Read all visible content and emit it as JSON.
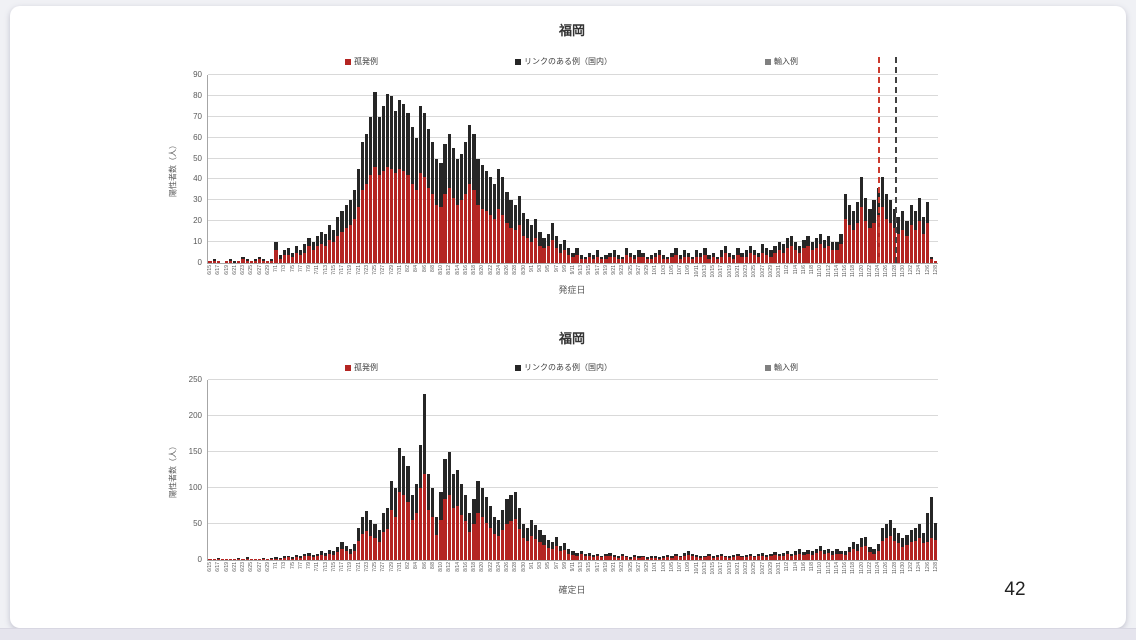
{
  "slide": {
    "page_number": "42"
  },
  "colors": {
    "isolated_red": "#b42522",
    "linked_black": "#262626",
    "imported_gray": "#808080",
    "vline_red": "#cc3b2e",
    "vline_black": "#404040",
    "gridline": "#d9d9d9",
    "axis_line": "#a6a6a6",
    "tick_text": "#595959"
  },
  "x_tick_labels": [
    "6/15",
    "6/17",
    "6/19",
    "6/21",
    "6/23",
    "6/25",
    "6/27",
    "6/29",
    "7/1",
    "7/3",
    "7/5",
    "7/7",
    "7/9",
    "7/11",
    "7/13",
    "7/15",
    "7/17",
    "7/19",
    "7/21",
    "7/23",
    "7/25",
    "7/27",
    "7/29",
    "7/31",
    "8/2",
    "8/4",
    "8/6",
    "8/8",
    "8/10",
    "8/12",
    "8/14",
    "8/16",
    "8/18",
    "8/20",
    "8/22",
    "8/24",
    "8/26",
    "8/28",
    "8/30",
    "9/1",
    "9/3",
    "9/5",
    "9/7",
    "9/9",
    "9/11",
    "9/13",
    "9/15",
    "9/17",
    "9/19",
    "9/21",
    "9/23",
    "9/25",
    "9/27",
    "9/29",
    "10/1",
    "10/3",
    "10/5",
    "10/7",
    "10/9",
    "10/11",
    "10/13",
    "10/15",
    "10/17",
    "10/19",
    "10/21",
    "10/23",
    "10/25",
    "10/27",
    "10/29",
    "10/31",
    "11/2",
    "11/4",
    "11/6",
    "11/8",
    "11/10",
    "11/12",
    "11/14",
    "11/16",
    "11/18",
    "11/20",
    "11/22",
    "11/24",
    "11/26",
    "11/28",
    "11/30",
    "12/2",
    "12/4",
    "12/6",
    "12/8"
  ],
  "chart_data": [
    {
      "type": "bar",
      "stacked": true,
      "title": "福岡",
      "y_axis_label": "陽性者数（人）",
      "x_axis_title": "発症日",
      "y_max": 90,
      "ylim": [
        0,
        90
      ],
      "y_ticks": [
        0,
        10,
        20,
        30,
        40,
        50,
        60,
        70,
        80,
        90
      ],
      "x_range": {
        "start": "6/15",
        "end": "12/8",
        "n_bars": 177,
        "tick_every": 2
      },
      "legend": [
        {
          "label": "孤発例",
          "color": "#b42522"
        },
        {
          "label": "リンクのある例（国内）",
          "color": "#262626"
        },
        {
          "label": "輸入例",
          "color": "#808080"
        }
      ],
      "annotations": [
        {
          "type": "vline",
          "date": "11/24",
          "bar_index": 162,
          "color": "#cc3b2e"
        },
        {
          "type": "vline",
          "date": "11/28",
          "bar_index": 166,
          "color": "#404040"
        }
      ],
      "series": [
        {
          "name": "孤発例",
          "values": [
            1,
            1,
            1,
            0,
            1,
            1,
            0,
            1,
            2,
            1,
            1,
            1,
            2,
            1,
            1,
            1,
            6,
            2,
            4,
            4,
            3,
            5,
            4,
            5,
            8,
            6,
            8,
            9,
            8,
            11,
            10,
            13,
            15,
            17,
            18,
            21,
            27,
            35,
            38,
            42,
            46,
            42,
            44,
            46,
            45,
            43,
            45,
            44,
            42,
            38,
            35,
            43,
            41,
            36,
            33,
            28,
            27,
            33,
            36,
            31,
            28,
            30,
            33,
            38,
            35,
            28,
            26,
            25,
            23,
            21,
            26,
            23,
            19,
            17,
            16,
            18,
            13,
            12,
            10,
            12,
            8,
            7,
            8,
            11,
            7,
            5,
            6,
            4,
            3,
            4,
            2,
            2,
            3,
            2,
            3,
            2,
            2,
            3,
            3,
            2,
            2,
            4,
            3,
            2,
            3,
            3,
            2,
            2,
            3,
            4,
            2,
            2,
            3,
            4,
            2,
            3,
            3,
            2,
            3,
            3,
            4,
            2,
            3,
            2,
            3,
            5,
            3,
            2,
            4,
            3,
            3,
            5,
            4,
            3,
            5,
            4,
            3,
            5,
            6,
            5,
            7,
            8,
            6,
            5,
            7,
            8,
            6,
            7,
            9,
            7,
            8,
            6,
            6,
            9,
            21,
            18,
            16,
            19,
            27,
            20,
            17,
            19,
            23,
            27,
            21,
            19,
            17,
            14,
            16,
            13,
            18,
            16,
            20,
            14,
            19,
            2,
            1
          ]
        },
        {
          "name": "リンクのある例（国内）",
          "values": [
            0,
            1,
            0,
            0,
            0,
            1,
            1,
            0,
            1,
            1,
            0,
            1,
            1,
            1,
            0,
            1,
            4,
            2,
            2,
            3,
            2,
            3,
            2,
            4,
            4,
            4,
            5,
            6,
            6,
            7,
            6,
            9,
            10,
            11,
            12,
            14,
            18,
            23,
            24,
            28,
            36,
            28,
            31,
            35,
            35,
            30,
            33,
            32,
            30,
            27,
            25,
            32,
            31,
            28,
            25,
            22,
            21,
            24,
            26,
            24,
            22,
            22,
            25,
            28,
            27,
            22,
            21,
            19,
            18,
            17,
            19,
            18,
            15,
            13,
            12,
            14,
            11,
            9,
            8,
            9,
            7,
            5,
            6,
            8,
            6,
            4,
            5,
            3,
            2,
            3,
            2,
            1,
            2,
            2,
            3,
            1,
            2,
            2,
            3,
            2,
            1,
            3,
            2,
            2,
            3,
            2,
            1,
            2,
            2,
            2,
            2,
            1,
            2,
            3,
            2,
            3,
            2,
            1,
            3,
            2,
            3,
            2,
            2,
            1,
            3,
            3,
            2,
            2,
            3,
            2,
            3,
            3,
            2,
            2,
            4,
            3,
            3,
            3,
            4,
            4,
            5,
            5,
            4,
            3,
            4,
            5,
            4,
            5,
            5,
            4,
            5,
            4,
            4,
            5,
            12,
            10,
            9,
            10,
            14,
            11,
            9,
            11,
            13,
            14,
            12,
            11,
            9,
            8,
            9,
            7,
            10,
            9,
            11,
            8,
            10,
            1,
            0
          ]
        }
      ]
    },
    {
      "type": "bar",
      "stacked": true,
      "title": "福岡",
      "y_axis_label": "陽性者数（人）",
      "x_axis_title": "確定日",
      "y_max": 250,
      "ylim": [
        0,
        250
      ],
      "y_ticks": [
        0,
        50,
        100,
        150,
        200,
        250
      ],
      "x_range": {
        "start": "6/15",
        "end": "12/8",
        "n_bars": 177,
        "tick_every": 2
      },
      "legend": [
        {
          "label": "孤発例",
          "color": "#b42522"
        },
        {
          "label": "リンクのある例（国内）",
          "color": "#262626"
        },
        {
          "label": "輸入例",
          "color": "#808080"
        }
      ],
      "annotations": [],
      "series": [
        {
          "name": "孤発例",
          "values": [
            1,
            1,
            2,
            1,
            1,
            1,
            1,
            2,
            1,
            2,
            1,
            1,
            1,
            2,
            1,
            2,
            2,
            2,
            3,
            4,
            2,
            4,
            3,
            5,
            6,
            4,
            5,
            7,
            6,
            8,
            7,
            11,
            15,
            12,
            9,
            13,
            27,
            36,
            40,
            33,
            30,
            25,
            39,
            43,
            70,
            60,
            95,
            90,
            80,
            55,
            65,
            100,
            120,
            70,
            60,
            35,
            55,
            85,
            90,
            72,
            75,
            63,
            54,
            39,
            50,
            65,
            60,
            52,
            45,
            36,
            33,
            42,
            50,
            54,
            57,
            43,
            30,
            27,
            33,
            29,
            25,
            21,
            17,
            15,
            19,
            12,
            14,
            9,
            7,
            6,
            8,
            5,
            6,
            4,
            5,
            4,
            5,
            6,
            4,
            3,
            5,
            4,
            2,
            4,
            3,
            4,
            2,
            3,
            3,
            2,
            3,
            4,
            3,
            5,
            4,
            6,
            7,
            5,
            4,
            3,
            4,
            5,
            3,
            4,
            5,
            4,
            3,
            4,
            5,
            4,
            4,
            5,
            4,
            5,
            6,
            4,
            5,
            7,
            5,
            6,
            8,
            5,
            7,
            9,
            7,
            9,
            7,
            10,
            12,
            9,
            10,
            7,
            9,
            8,
            7,
            11,
            15,
            13,
            18,
            19,
            11,
            9,
            13,
            27,
            30,
            33,
            27,
            23,
            18,
            21,
            25,
            27,
            30,
            23,
            25,
            30,
            28
          ]
        },
        {
          "name": "リンクのある例（国内）",
          "values": [
            1,
            0,
            1,
            1,
            0,
            1,
            0,
            1,
            1,
            2,
            1,
            0,
            1,
            1,
            1,
            1,
            2,
            1,
            2,
            2,
            2,
            3,
            2,
            3,
            4,
            3,
            4,
            5,
            4,
            6,
            5,
            7,
            10,
            8,
            6,
            9,
            18,
            24,
            28,
            22,
            20,
            17,
            26,
            29,
            40,
            40,
            60,
            55,
            50,
            35,
            40,
            60,
            110,
            50,
            40,
            25,
            40,
            55,
            60,
            48,
            50,
            42,
            36,
            26,
            35,
            45,
            40,
            36,
            30,
            24,
            22,
            28,
            35,
            36,
            38,
            29,
            20,
            18,
            22,
            19,
            17,
            14,
            11,
            10,
            13,
            8,
            10,
            6,
            5,
            4,
            5,
            3,
            4,
            3,
            4,
            2,
            3,
            4,
            3,
            2,
            3,
            2,
            2,
            3,
            2,
            2,
            2,
            2,
            3,
            2,
            2,
            3,
            2,
            3,
            2,
            4,
            5,
            4,
            3,
            2,
            2,
            3,
            3,
            3,
            4,
            2,
            2,
            3,
            3,
            2,
            3,
            4,
            2,
            3,
            4,
            3,
            4,
            4,
            3,
            4,
            5,
            4,
            5,
            6,
            4,
            5,
            5,
            6,
            8,
            5,
            6,
            5,
            6,
            5,
            5,
            7,
            10,
            9,
            12,
            13,
            7,
            6,
            9,
            18,
            20,
            22,
            18,
            15,
            12,
            14,
            17,
            18,
            20,
            15,
            40,
            58,
            24
          ]
        }
      ]
    }
  ]
}
